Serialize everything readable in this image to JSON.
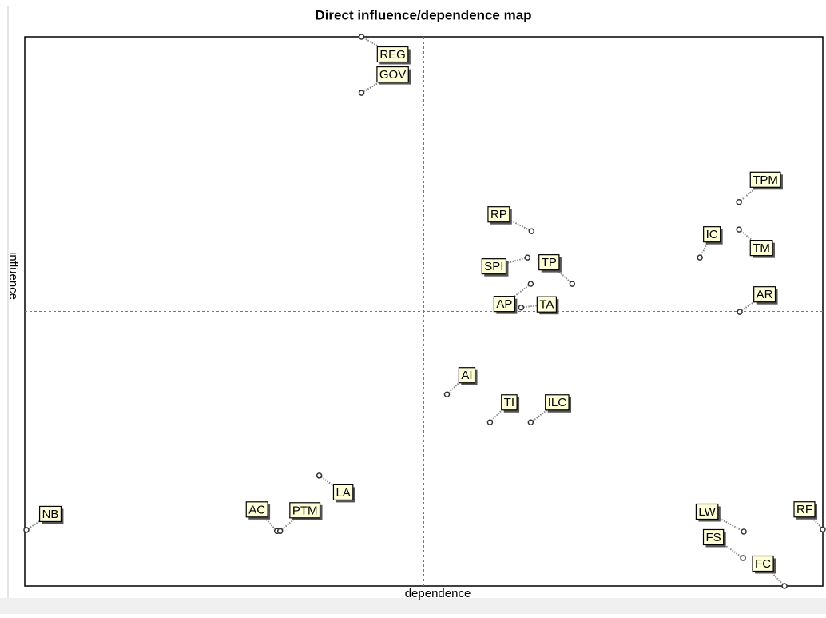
{
  "chart_data": {
    "type": "scatter",
    "title": "Direct influence/dependence map",
    "xlabel": "dependence",
    "ylabel": "influence",
    "xlim": [
      0,
      100
    ],
    "ylim": [
      0,
      100
    ],
    "points": [
      {
        "label": "REG",
        "x": 42.2,
        "y": 100
      },
      {
        "label": "GOV",
        "x": 42.2,
        "y": 89.8
      },
      {
        "label": "TPM",
        "x": 89.5,
        "y": 69.9
      },
      {
        "label": "RP",
        "x": 63.5,
        "y": 64.6
      },
      {
        "label": "IC",
        "x": 84.6,
        "y": 59.8
      },
      {
        "label": "TM",
        "x": 89.5,
        "y": 64.9
      },
      {
        "label": "SPI",
        "x": 63.0,
        "y": 59.8
      },
      {
        "label": "TP",
        "x": 68.6,
        "y": 55.0
      },
      {
        "label": "AP",
        "x": 63.4,
        "y": 55.0
      },
      {
        "label": "TA",
        "x": 62.2,
        "y": 50.7
      },
      {
        "label": "AR",
        "x": 89.6,
        "y": 49.9
      },
      {
        "label": "AI",
        "x": 52.9,
        "y": 34.9
      },
      {
        "label": "TI",
        "x": 58.3,
        "y": 29.8
      },
      {
        "label": "ILC",
        "x": 63.4,
        "y": 29.8
      },
      {
        "label": "LA",
        "x": 36.9,
        "y": 20.1
      },
      {
        "label": "AC",
        "x": 31.6,
        "y": 10.0
      },
      {
        "label": "PTM",
        "x": 32.0,
        "y": 10.0
      },
      {
        "label": "NB",
        "x": 0.2,
        "y": 10.2
      },
      {
        "label": "LW",
        "x": 90.1,
        "y": 9.9
      },
      {
        "label": "FS",
        "x": 90.0,
        "y": 5.1
      },
      {
        "label": "RF",
        "x": 100,
        "y": 10.3
      },
      {
        "label": "FC",
        "x": 95.2,
        "y": 0
      }
    ]
  }
}
